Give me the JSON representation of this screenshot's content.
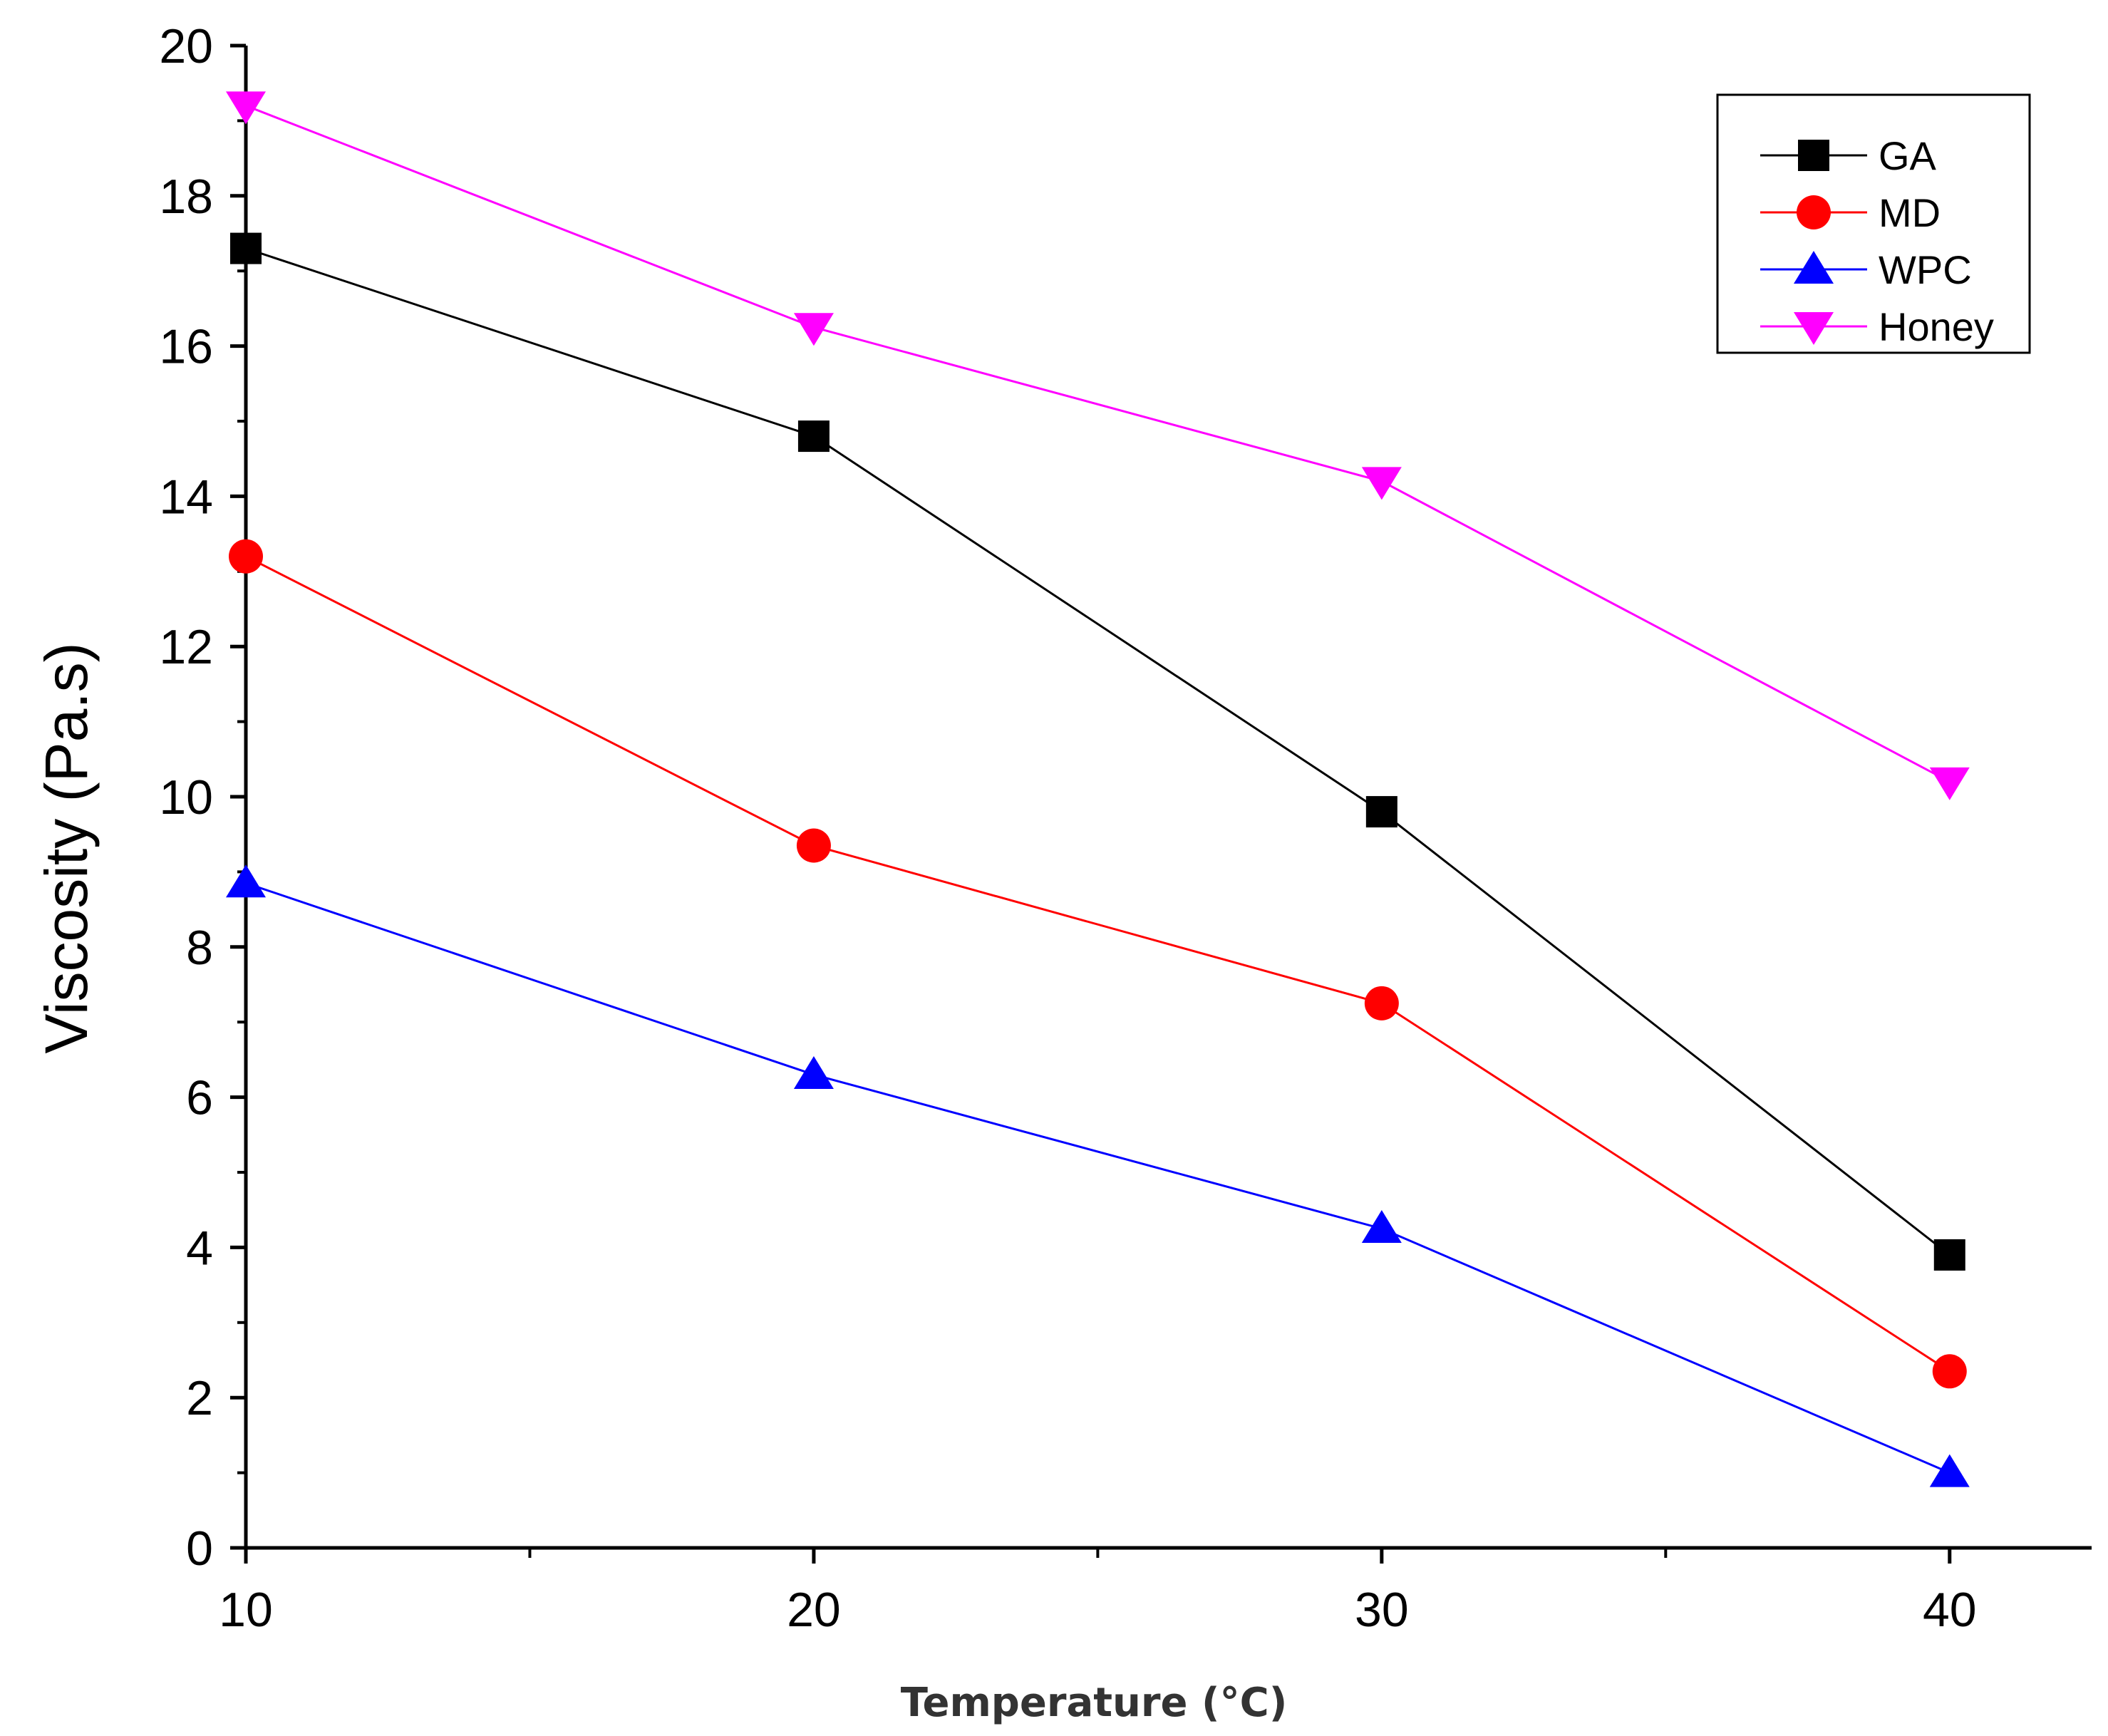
{
  "chart_data": {
    "type": "line",
    "title": "",
    "xlabel": "Temperature (°C)",
    "ylabel": "Viscosity (Pa.s)",
    "x": [
      10,
      20,
      30,
      40
    ],
    "xlim": [
      10,
      42.5
    ],
    "ylim": [
      0,
      20
    ],
    "xticks": [
      10,
      20,
      30,
      40
    ],
    "yticks": [
      0,
      2,
      4,
      6,
      8,
      10,
      12,
      14,
      16,
      18,
      20
    ],
    "grid": false,
    "legend_position": "top-right",
    "series": [
      {
        "name": "GA",
        "color": "#000000",
        "marker": "square",
        "values": [
          17.3,
          14.8,
          9.8,
          3.9
        ]
      },
      {
        "name": "MD",
        "color": "#ff0000",
        "marker": "circle",
        "values": [
          13.2,
          9.35,
          7.25,
          2.35
        ]
      },
      {
        "name": "WPC",
        "color": "#0000ff",
        "marker": "triangle-up",
        "values": [
          8.85,
          6.3,
          4.25,
          1.0
        ]
      },
      {
        "name": "Honey",
        "color": "#ff00ff",
        "marker": "triangle-down",
        "values": [
          19.2,
          16.25,
          14.2,
          10.2
        ]
      }
    ]
  }
}
